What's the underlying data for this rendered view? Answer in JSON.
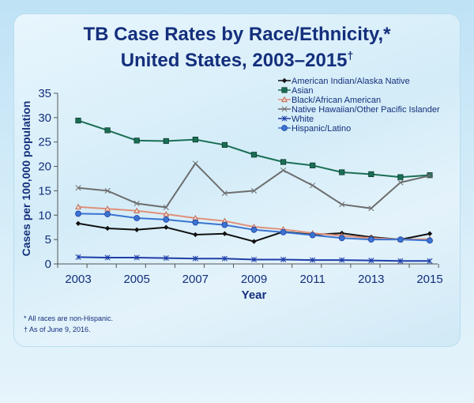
{
  "chart_data": {
    "type": "line",
    "title": "TB Case Rates by Race/Ethnicity,* United States, 2003–2015†",
    "title_line1": "TB Case Rates by Race/Ethnicity,*",
    "title_line2": "United States, 2003–2015",
    "title_mark": "†",
    "xlabel": "Year",
    "ylabel": "Cases per 100,000 population",
    "x": [
      2003,
      2004,
      2005,
      2006,
      2007,
      2008,
      2009,
      2010,
      2011,
      2012,
      2013,
      2014,
      2015
    ],
    "xticks": [
      "2003",
      "2005",
      "2007",
      "2009",
      "2011",
      "2013",
      "2015"
    ],
    "yticks": [
      "0",
      "5",
      "10",
      "15",
      "20",
      "25",
      "30",
      "35"
    ],
    "ylim": [
      0,
      35
    ],
    "grid": false,
    "legend_position": "top-right",
    "series": [
      {
        "name": "American Indian/Alaska Native",
        "color": "#111111",
        "marker": "diamond",
        "values": [
          8.3,
          7.3,
          7.0,
          7.5,
          6.0,
          6.2,
          4.6,
          6.6,
          6.0,
          6.3,
          5.5,
          5.0,
          6.2
        ]
      },
      {
        "name": "Asian",
        "color": "#1a6e55",
        "marker": "square",
        "values": [
          29.4,
          27.4,
          25.3,
          25.2,
          25.5,
          24.4,
          22.4,
          20.9,
          20.2,
          18.8,
          18.4,
          17.8,
          18.2
        ]
      },
      {
        "name": "Black/African American",
        "color": "#e0907a",
        "marker": "triangle",
        "values": [
          11.7,
          11.3,
          10.9,
          10.2,
          9.4,
          8.8,
          7.6,
          7.1,
          6.3,
          5.8,
          5.3,
          5.0,
          5.1
        ]
      },
      {
        "name": "Native Hawaiian/Other Pacific Islander",
        "color": "#6d6d6d",
        "marker": "x",
        "values": [
          15.6,
          15.0,
          12.4,
          11.6,
          20.6,
          14.5,
          15.0,
          19.2,
          16.1,
          12.2,
          11.4,
          16.7,
          18.1
        ]
      },
      {
        "name": "White",
        "color": "#1f3fa8",
        "marker": "asterisk",
        "values": [
          1.4,
          1.3,
          1.3,
          1.2,
          1.1,
          1.1,
          0.9,
          0.9,
          0.8,
          0.8,
          0.7,
          0.6,
          0.6
        ]
      },
      {
        "name": "Hispanic/Latino",
        "color": "#3a74d0",
        "marker": "circle",
        "values": [
          10.3,
          10.2,
          9.4,
          9.1,
          8.5,
          8.0,
          7.0,
          6.5,
          5.9,
          5.3,
          5.0,
          5.0,
          4.8
        ]
      }
    ]
  },
  "footnotes": {
    "note1": "*  All races are non-Hispanic.",
    "note2": "†  As of June 9, 2016."
  }
}
